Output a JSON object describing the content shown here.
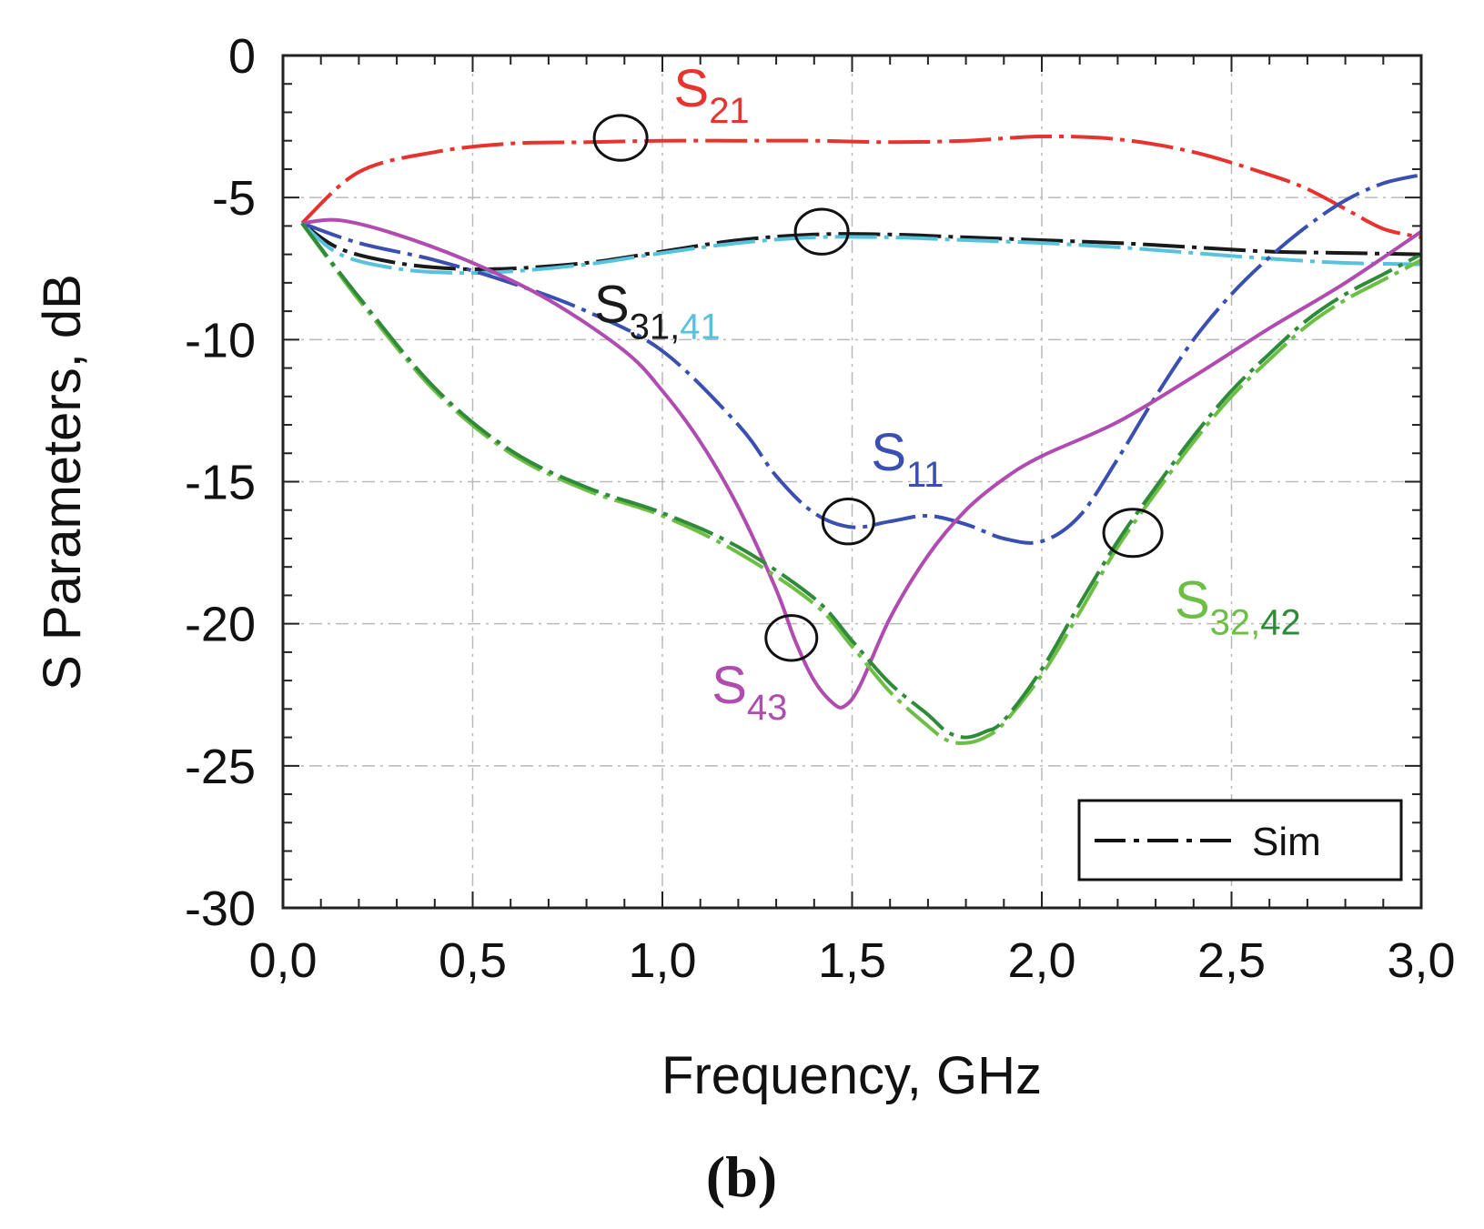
{
  "caption": "(b)",
  "chart_data": {
    "type": "line",
    "title": "",
    "xlabel": "Frequency, GHz",
    "ylabel": "S Parameters, dB",
    "xlim": [
      0.0,
      3.0
    ],
    "ylim": [
      -30,
      0
    ],
    "grid": true,
    "xticks": [
      0.0,
      0.5,
      1.0,
      1.5,
      2.0,
      2.5,
      3.0
    ],
    "xtick_labels": [
      "0,0",
      "0,5",
      "1,0",
      "1,5",
      "2,0",
      "2,5",
      "3,0"
    ],
    "yticks": [
      0,
      -5,
      -10,
      -15,
      -20,
      -25,
      -30
    ],
    "ytick_labels": [
      "0",
      "-5",
      "-10",
      "-15",
      "-20",
      "-25",
      "-30"
    ],
    "legend": {
      "position": "bottom-right",
      "entries": [
        {
          "label": "Sim",
          "style": "dash-dot"
        }
      ]
    },
    "series": [
      {
        "name": "S21",
        "color": "#e8322e",
        "style": "dash-dot",
        "x": [
          0.05,
          0.2,
          0.4,
          0.6,
          0.8,
          1.0,
          1.2,
          1.4,
          1.6,
          1.8,
          2.0,
          2.2,
          2.4,
          2.6,
          2.7,
          2.8,
          2.9,
          3.0
        ],
        "y": [
          -5.9,
          -4.1,
          -3.4,
          -3.1,
          -3.05,
          -3.0,
          -3.0,
          -3.0,
          -3.05,
          -3.0,
          -2.85,
          -2.95,
          -3.4,
          -4.2,
          -4.7,
          -5.4,
          -6.1,
          -6.4
        ]
      },
      {
        "name": "S31",
        "color": "#1a1a1a",
        "style": "dash-dot",
        "x": [
          0.05,
          0.15,
          0.3,
          0.45,
          0.6,
          0.8,
          1.0,
          1.2,
          1.4,
          1.6,
          1.8,
          2.0,
          2.2,
          2.4,
          2.6,
          2.8,
          3.0
        ],
        "y": [
          -5.9,
          -6.8,
          -7.3,
          -7.5,
          -7.5,
          -7.3,
          -6.9,
          -6.5,
          -6.3,
          -6.3,
          -6.4,
          -6.5,
          -6.6,
          -6.75,
          -6.9,
          -6.95,
          -7.0
        ]
      },
      {
        "name": "S41",
        "color": "#56c2dc",
        "style": "dash-dot",
        "x": [
          0.05,
          0.15,
          0.3,
          0.45,
          0.6,
          0.8,
          1.0,
          1.2,
          1.4,
          1.6,
          1.8,
          2.0,
          2.2,
          2.4,
          2.6,
          2.8,
          3.0
        ],
        "y": [
          -5.9,
          -7.0,
          -7.5,
          -7.65,
          -7.6,
          -7.35,
          -6.95,
          -6.6,
          -6.4,
          -6.4,
          -6.5,
          -6.6,
          -6.75,
          -6.95,
          -7.15,
          -7.3,
          -7.35
        ]
      },
      {
        "name": "S11",
        "color": "#3a4fb0",
        "style": "dash-dot",
        "x": [
          0.05,
          0.2,
          0.4,
          0.6,
          0.8,
          1.0,
          1.2,
          1.3,
          1.4,
          1.5,
          1.6,
          1.7,
          1.8,
          1.9,
          2.0,
          2.1,
          2.2,
          2.3,
          2.4,
          2.5,
          2.6,
          2.7,
          2.8,
          2.9,
          3.0
        ],
        "y": [
          -5.9,
          -6.6,
          -7.2,
          -8.0,
          -9.0,
          -10.4,
          -13.0,
          -14.8,
          -16.1,
          -16.6,
          -16.4,
          -16.2,
          -16.5,
          -17.0,
          -17.1,
          -16.2,
          -14.2,
          -12.0,
          -10.0,
          -8.4,
          -7.1,
          -6.0,
          -5.1,
          -4.5,
          -4.2
        ]
      },
      {
        "name": "S43",
        "color": "#b04bb0",
        "style": "solid",
        "x": [
          0.05,
          0.15,
          0.3,
          0.5,
          0.7,
          0.9,
          1.0,
          1.1,
          1.2,
          1.3,
          1.35,
          1.4,
          1.45,
          1.48,
          1.52,
          1.6,
          1.7,
          1.8,
          1.9,
          2.0,
          2.2,
          2.4,
          2.6,
          2.8,
          3.0
        ],
        "y": [
          -5.9,
          -5.8,
          -6.3,
          -7.3,
          -8.6,
          -10.4,
          -11.8,
          -13.6,
          -15.9,
          -18.8,
          -20.6,
          -22.0,
          -22.8,
          -22.9,
          -22.2,
          -19.8,
          -17.6,
          -16.0,
          -14.9,
          -14.1,
          -12.9,
          -11.3,
          -9.6,
          -8.0,
          -6.2
        ]
      },
      {
        "name": "S32",
        "color": "#6cbf44",
        "style": "dash-dot",
        "x": [
          0.05,
          0.2,
          0.4,
          0.6,
          0.8,
          1.0,
          1.2,
          1.4,
          1.5,
          1.6,
          1.7,
          1.75,
          1.8,
          1.85,
          1.9,
          2.0,
          2.1,
          2.2,
          2.3,
          2.4,
          2.5,
          2.6,
          2.7,
          2.8,
          2.9,
          3.0
        ],
        "y": [
          -5.9,
          -8.6,
          -11.8,
          -14.0,
          -15.3,
          -16.2,
          -17.5,
          -19.3,
          -20.8,
          -22.4,
          -23.6,
          -24.1,
          -24.2,
          -24.0,
          -23.5,
          -21.8,
          -19.6,
          -17.3,
          -15.4,
          -13.6,
          -12.0,
          -10.7,
          -9.5,
          -8.6,
          -7.9,
          -7.2
        ]
      },
      {
        "name": "S42",
        "color": "#2f8a3a",
        "style": "dash-dot",
        "x": [
          0.05,
          0.2,
          0.4,
          0.6,
          0.8,
          1.0,
          1.2,
          1.4,
          1.5,
          1.6,
          1.7,
          1.75,
          1.8,
          1.85,
          1.9,
          2.0,
          2.1,
          2.2,
          2.3,
          2.4,
          2.5,
          2.6,
          2.7,
          2.8,
          2.9,
          3.0
        ],
        "y": [
          -5.9,
          -8.5,
          -11.7,
          -13.9,
          -15.2,
          -16.1,
          -17.3,
          -19.1,
          -20.6,
          -22.1,
          -23.2,
          -23.8,
          -24.0,
          -23.8,
          -23.4,
          -21.6,
          -19.3,
          -17.1,
          -15.2,
          -13.4,
          -11.8,
          -10.5,
          -9.3,
          -8.4,
          -7.7,
          -7.0
        ]
      }
    ],
    "annotations": [
      {
        "name": "S21",
        "text": "S",
        "sub": "21",
        "color": "#e8322e",
        "sub_color": "#e8322e"
      },
      {
        "name": "S31,41",
        "text": "S",
        "sub": "31,",
        "sub2": "41",
        "color": "#1a1a1a",
        "sub_color": "#1a1a1a",
        "sub2_color": "#56c2dc"
      },
      {
        "name": "S11",
        "text": "S",
        "sub": "11",
        "color": "#3a4fb0",
        "sub_color": "#3a4fb0"
      },
      {
        "name": "S43",
        "text": "S",
        "sub": "43",
        "color": "#b04bb0",
        "sub_color": "#b04bb0"
      },
      {
        "name": "S32,42",
        "text": "S",
        "sub": "32,",
        "sub2": "42",
        "color": "#6cbf44",
        "sub_color": "#6cbf44",
        "sub2_color": "#2f8a3a"
      }
    ]
  }
}
